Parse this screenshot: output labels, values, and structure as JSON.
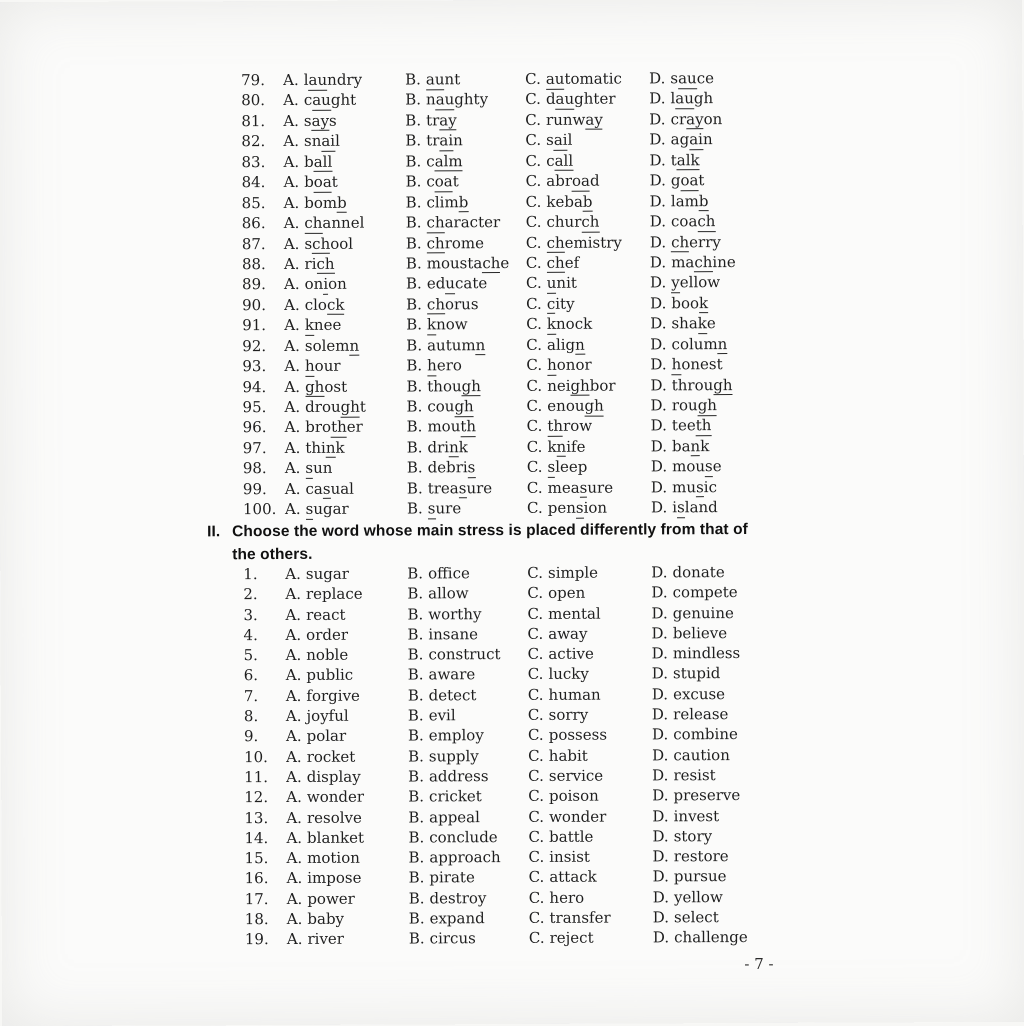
{
  "document": {
    "page_number": "- 7 -"
  },
  "option_letters": [
    "A.",
    "B.",
    "C.",
    "D."
  ],
  "section_pronunciation": {
    "questions": [
      {
        "num": "79.",
        "options": [
          "l{au}ndry",
          "{au}nt",
          "{au}tomatic",
          "s{au}ce"
        ]
      },
      {
        "num": "80.",
        "options": [
          "c{au}ght",
          "n{au}ghty",
          "d{au}ghter",
          "l{au}gh"
        ]
      },
      {
        "num": "81.",
        "options": [
          "s{ay}s",
          "tr{ay}",
          "runw{ay}",
          "cr{ay}on"
        ]
      },
      {
        "num": "82.",
        "options": [
          "sn{ai}l",
          "tr{ai}n",
          "s{ai}l",
          "ag{ai}n"
        ]
      },
      {
        "num": "83.",
        "options": [
          "b{all}",
          "c{alm}",
          "c{all}",
          "t{alk}"
        ]
      },
      {
        "num": "84.",
        "options": [
          "b{oa}t",
          "c{oa}t",
          "abr{oa}d",
          "g{oa}t"
        ]
      },
      {
        "num": "85.",
        "options": [
          "bom{b}",
          "clim{b}",
          "keba{b}",
          "lam{b}"
        ]
      },
      {
        "num": "86.",
        "options": [
          "{ch}annel",
          "{ch}aracter",
          "chur{ch}",
          "coa{ch}"
        ]
      },
      {
        "num": "87.",
        "options": [
          "s{ch}ool",
          "{ch}rome",
          "{ch}emistry",
          "{ch}erry"
        ]
      },
      {
        "num": "88.",
        "options": [
          "ri{ch}",
          "mousta{ch}e",
          "{ch}ef",
          "ma{ch}ine"
        ]
      },
      {
        "num": "89.",
        "options": [
          "on{i}on",
          "ed{u}cate",
          "{u}nit",
          "{y}ellow"
        ]
      },
      {
        "num": "90.",
        "options": [
          "clo{ck}",
          "{ch}orus",
          "{c}ity",
          "boo{k}"
        ]
      },
      {
        "num": "91.",
        "options": [
          "{k}nee",
          "{k}now",
          "{k}nock",
          "sha{k}e"
        ]
      },
      {
        "num": "92.",
        "options": [
          "solem{n}",
          "autum{n}",
          "alig{n}",
          "colum{n}"
        ]
      },
      {
        "num": "93.",
        "options": [
          "{h}our",
          "{h}ero",
          "{h}onor",
          "{h}onest"
        ]
      },
      {
        "num": "94.",
        "options": [
          "{gh}ost",
          "thou{gh}",
          "nei{gh}bor",
          "throu{gh}"
        ]
      },
      {
        "num": "95.",
        "options": [
          "drou{gh}t",
          "cou{gh}",
          "enou{gh}",
          "rou{gh}"
        ]
      },
      {
        "num": "96.",
        "options": [
          "bro{th}er",
          "mou{th}",
          "{th}row",
          "tee{th}"
        ]
      },
      {
        "num": "97.",
        "options": [
          "thi{n}k",
          "dri{n}k",
          "k{n}ife",
          "ba{n}k"
        ]
      },
      {
        "num": "98.",
        "options": [
          "{s}un",
          "debri{s}",
          "{s}leep",
          "mou{s}e"
        ]
      },
      {
        "num": "99.",
        "options": [
          "ca{s}ual",
          "trea{s}ure",
          "mea{s}ure",
          "mu{s}ic"
        ]
      },
      {
        "num": "100.",
        "options": [
          "{s}ugar",
          "{s}ure",
          "pen{s}ion",
          "i{s}land"
        ]
      }
    ]
  },
  "section_stress": {
    "label": "II.",
    "heading_lines": [
      "Choose the word whose main stress is placed differently from that of",
      "the others."
    ],
    "questions": [
      {
        "num": "1.",
        "options": [
          "sugar",
          "office",
          "simple",
          "donate"
        ]
      },
      {
        "num": "2.",
        "options": [
          "replace",
          "allow",
          "open",
          "compete"
        ]
      },
      {
        "num": "3.",
        "options": [
          "react",
          "worthy",
          "mental",
          "genuine"
        ]
      },
      {
        "num": "4.",
        "options": [
          "order",
          "insane",
          "away",
          "believe"
        ]
      },
      {
        "num": "5.",
        "options": [
          "noble",
          "construct",
          "active",
          "mindless"
        ]
      },
      {
        "num": "6.",
        "options": [
          "public",
          "aware",
          "lucky",
          "stupid"
        ]
      },
      {
        "num": "7.",
        "options": [
          "forgive",
          "detect",
          "human",
          "excuse"
        ]
      },
      {
        "num": "8.",
        "options": [
          "joyful",
          "evil",
          "sorry",
          "release"
        ]
      },
      {
        "num": "9.",
        "options": [
          "polar",
          "employ",
          "possess",
          "combine"
        ]
      },
      {
        "num": "10.",
        "options": [
          "rocket",
          "supply",
          "habit",
          "caution"
        ]
      },
      {
        "num": "11.",
        "options": [
          "display",
          "address",
          "service",
          "resist"
        ]
      },
      {
        "num": "12.",
        "options": [
          "wonder",
          "cricket",
          "poison",
          "preserve"
        ]
      },
      {
        "num": "13.",
        "options": [
          "resolve",
          "appeal",
          "wonder",
          "invest"
        ]
      },
      {
        "num": "14.",
        "options": [
          "blanket",
          "conclude",
          "battle",
          "story"
        ]
      },
      {
        "num": "15.",
        "options": [
          "motion",
          "approach",
          "insist",
          "restore"
        ]
      },
      {
        "num": "16.",
        "options": [
          "impose",
          "pirate",
          "attack",
          "pursue"
        ]
      },
      {
        "num": "17.",
        "options": [
          "power",
          "destroy",
          "hero",
          "yellow"
        ]
      },
      {
        "num": "18.",
        "options": [
          "baby",
          "expand",
          "transfer",
          "select"
        ]
      },
      {
        "num": "19.",
        "options": [
          "river",
          "circus",
          "reject",
          "challenge"
        ]
      }
    ]
  }
}
